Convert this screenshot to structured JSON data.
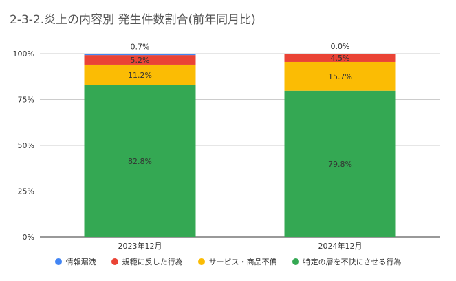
{
  "chart_data": {
    "type": "bar",
    "stacked": true,
    "title": "2-3-2.炎上の内容別 発生件数割合(前年同月比)",
    "categories": [
      "2023年12月",
      "2024年12月"
    ],
    "y_ticks": [
      "0%",
      "25%",
      "50%",
      "75%",
      "100%"
    ],
    "ylim": [
      0,
      100
    ],
    "grid": true,
    "legend_position": "bottom",
    "series": [
      {
        "name": "特定の層を不快にさせる行為",
        "color": "#34a853",
        "values": [
          82.8,
          79.8
        ],
        "labels": [
          "82.8%",
          "79.8%"
        ]
      },
      {
        "name": "サービス・商品不備",
        "color": "#fbbc04",
        "values": [
          11.2,
          15.7
        ],
        "labels": [
          "11.2%",
          "15.7%"
        ]
      },
      {
        "name": "規範に反した行為",
        "color": "#ea4335",
        "values": [
          5.2,
          4.5
        ],
        "labels": [
          "5.2%",
          "4.5%"
        ]
      },
      {
        "name": "情報漏洩",
        "color": "#4285f4",
        "values": [
          0.7,
          0.0
        ],
        "labels": [
          "0.7%",
          "0.0%"
        ]
      }
    ],
    "legend_order": [
      "情報漏洩",
      "規範に反した行為",
      "サービス・商品不備",
      "特定の層を不快にさせる行為"
    ]
  }
}
